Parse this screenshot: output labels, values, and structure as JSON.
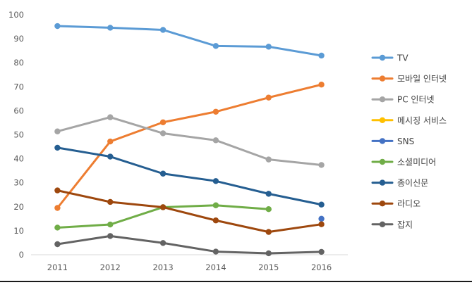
{
  "chart_data": {
    "type": "line",
    "title": "",
    "xlabel": "",
    "ylabel": "",
    "x": [
      "2011",
      "2012",
      "2013",
      "2014",
      "2015",
      "2016"
    ],
    "ylim": [
      0,
      100
    ],
    "yticks": [
      0,
      10,
      20,
      30,
      40,
      50,
      60,
      70,
      80,
      90,
      100
    ],
    "grid": false,
    "legend_position": "right",
    "series": [
      {
        "name": "TV",
        "color": "#5B9BD5",
        "values": [
          95.3,
          94.6,
          93.7,
          87.0,
          86.7,
          83.0
        ]
      },
      {
        "name": "모바일 인터넷",
        "color": "#ED7D31",
        "values": [
          19.5,
          47.2,
          55.2,
          59.6,
          65.5,
          70.9
        ]
      },
      {
        "name": "PC 인터넷",
        "color": "#A5A5A5",
        "values": [
          51.4,
          57.3,
          50.6,
          47.7,
          39.7,
          37.4
        ]
      },
      {
        "name": "메시징 서비스",
        "color": "#FFC000",
        "values": [
          null,
          null,
          null,
          null,
          null,
          null
        ]
      },
      {
        "name": "SNS",
        "color": "#4472C4",
        "values": [
          null,
          null,
          null,
          null,
          null,
          15.0
        ]
      },
      {
        "name": "소셜미디어",
        "color": "#70AD47",
        "values": [
          11.3,
          12.6,
          19.8,
          20.6,
          19.0,
          null
        ]
      },
      {
        "name": "종이신문",
        "color": "#255E91",
        "values": [
          44.6,
          40.9,
          33.8,
          30.7,
          25.4,
          20.9
        ]
      },
      {
        "name": "라디오",
        "color": "#9E480E",
        "values": [
          26.8,
          22.0,
          19.8,
          14.3,
          9.5,
          12.7
        ]
      },
      {
        "name": "잡지",
        "color": "#636363",
        "values": [
          4.4,
          7.8,
          4.9,
          1.3,
          0.6,
          1.2
        ]
      }
    ]
  }
}
